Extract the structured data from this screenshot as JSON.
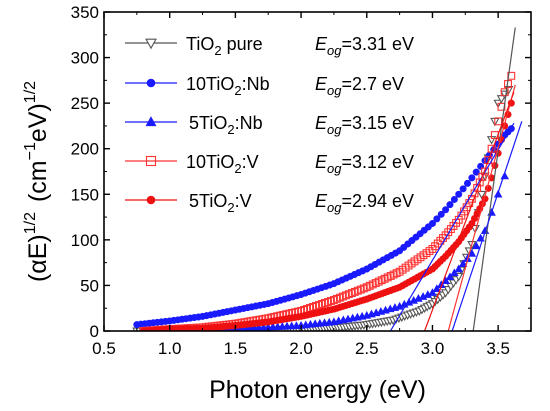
{
  "chart_data": {
    "type": "scatter",
    "title": "",
    "xlabel": "Photon energy (eV)",
    "ylabel": {
      "base": "(αE)",
      "exp1": "1/2",
      "units_open": "(cm",
      "units_exp": "−1",
      "units_mid": "eV)",
      "exp2": "1/2"
    },
    "xlim": [
      0.5,
      3.75
    ],
    "ylim": [
      0,
      350
    ],
    "xticks": [
      "0.5",
      "1.0",
      "1.5",
      "2.0",
      "2.5",
      "3.0",
      "3.5"
    ],
    "xtick_values": [
      0.5,
      1.0,
      1.5,
      2.0,
      2.5,
      3.0,
      3.5
    ],
    "yticks": [
      "0",
      "50",
      "100",
      "150",
      "200",
      "250",
      "300",
      "350"
    ],
    "ytick_values": [
      0,
      50,
      100,
      150,
      200,
      250,
      300,
      350
    ],
    "grid": false,
    "legend_position": "top-left",
    "series": [
      {
        "name_main": "TiO",
        "name_sub": "2",
        "name_tail": " pure",
        "egap_symbol": "E",
        "egap_sub": "og",
        "egap_text": "=3.31 eV",
        "color": "#555555",
        "marker": "triangle-down-open",
        "x": [
          0.75,
          1.0,
          1.5,
          2.0,
          2.3,
          2.5,
          2.7,
          2.9,
          3.0,
          3.1,
          3.2,
          3.3,
          3.35,
          3.4,
          3.45,
          3.5,
          3.55,
          3.58
        ],
        "y": [
          0,
          0,
          0,
          2,
          4,
          7,
          12,
          22,
          30,
          42,
          60,
          95,
          130,
          170,
          210,
          250,
          260,
          265
        ],
        "fit_x": [
          3.31,
          3.63
        ],
        "fit_y": [
          0,
          333
        ]
      },
      {
        "name_main": "10TiO",
        "name_sub": "2",
        "name_tail": ":Nb",
        "egap_symbol": "E",
        "egap_sub": "og",
        "egap_text": "=2.7 eV",
        "color": "#1a1aff",
        "marker": "circle-filled",
        "x": [
          0.75,
          1.0,
          1.25,
          1.5,
          1.75,
          2.0,
          2.25,
          2.5,
          2.75,
          3.0,
          3.1,
          3.2,
          3.3,
          3.4,
          3.5,
          3.55,
          3.6
        ],
        "y": [
          7,
          11,
          16,
          23,
          30,
          40,
          52,
          68,
          88,
          118,
          133,
          150,
          168,
          187,
          205,
          215,
          222
        ],
        "fit_x": [
          2.68,
          3.62
        ],
        "fit_y": [
          0,
          228
        ]
      },
      {
        "name_main": "5TiO",
        "name_sub": "2",
        "name_tail": ":Nb",
        "egap_symbol": "E",
        "egap_sub": "og",
        "egap_text": "=3.15 eV",
        "color": "#1a1aff",
        "marker": "triangle-up-filled",
        "x": [
          0.9,
          1.25,
          1.5,
          1.75,
          2.0,
          2.25,
          2.5,
          2.75,
          3.0,
          3.1,
          3.2,
          3.3,
          3.4,
          3.45,
          3.5,
          3.55
        ],
        "y": [
          0,
          0,
          2,
          4,
          6,
          10,
          17,
          27,
          42,
          55,
          68,
          85,
          110,
          130,
          150,
          170
        ],
        "fit_x": [
          3.15,
          3.68
        ],
        "fit_y": [
          0,
          230
        ]
      },
      {
        "name_main": "10TiO",
        "name_sub": "2",
        "name_tail": ":V",
        "egap_symbol": "E",
        "egap_sub": "og",
        "egap_text": "=3.12 eV",
        "color": "#ff3333",
        "marker": "square-open",
        "x": [
          0.8,
          1.0,
          1.25,
          1.5,
          1.75,
          2.0,
          2.25,
          2.5,
          2.75,
          3.0,
          3.1,
          3.2,
          3.3,
          3.4,
          3.45,
          3.5,
          3.55,
          3.6
        ],
        "y": [
          0,
          2,
          4,
          8,
          14,
          22,
          34,
          48,
          65,
          90,
          105,
          122,
          145,
          175,
          200,
          230,
          262,
          280
        ],
        "fit_x": [
          3.12,
          3.63
        ],
        "fit_y": [
          0,
          270
        ]
      },
      {
        "name_main": "5TiO",
        "name_sub": "2",
        "name_tail": ":V",
        "egap_symbol": "E",
        "egap_sub": "og",
        "egap_text": "=2.94 eV",
        "color": "#ee1111",
        "marker": "circle-filled",
        "x": [
          0.8,
          1.0,
          1.25,
          1.5,
          1.75,
          2.0,
          2.25,
          2.5,
          2.75,
          3.0,
          3.1,
          3.2,
          3.3,
          3.4,
          3.45,
          3.5,
          3.55,
          3.6
        ],
        "y": [
          0,
          2,
          3,
          6,
          10,
          16,
          24,
          35,
          48,
          68,
          82,
          98,
          118,
          145,
          168,
          195,
          225,
          250
        ],
        "fit_x": [
          2.94,
          3.62
        ],
        "fit_y": [
          0,
          262
        ]
      }
    ]
  }
}
